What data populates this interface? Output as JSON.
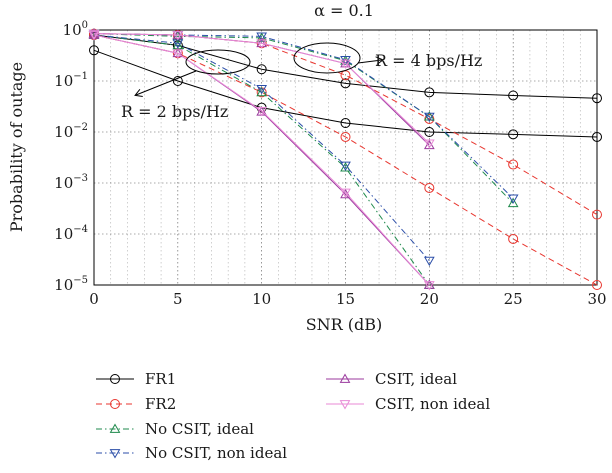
{
  "chart_data": {
    "type": "line",
    "title": "α = 0.1",
    "xlabel": "SNR (dB)",
    "ylabel": "Probability of outage",
    "xlim": [
      0,
      30
    ],
    "ylim": [
      1e-05,
      1
    ],
    "y_scale": "log",
    "grid": true,
    "x_ticks": [
      "0",
      "5",
      "10",
      "15",
      "20",
      "25",
      "30"
    ],
    "y_ticks": [
      {
        "base": "10",
        "exp": "0"
      },
      {
        "base": "10",
        "exp": "−1"
      },
      {
        "base": "10",
        "exp": "−2"
      },
      {
        "base": "10",
        "exp": "−3"
      },
      {
        "base": "10",
        "exp": "−4"
      },
      {
        "base": "10",
        "exp": "−5"
      }
    ],
    "annotations": [
      "R = 4 bps/Hz",
      "R = 2 bps/Hz"
    ],
    "legend_placement": "below",
    "series": [
      {
        "name": "FR1",
        "rate": 2,
        "color": "#000000",
        "dash": "solid",
        "marker": "circle",
        "x": [
          0,
          5,
          10,
          15,
          20,
          25,
          30
        ],
        "y": [
          0.4,
          0.1,
          0.03,
          0.015,
          0.01,
          0.009,
          0.008
        ]
      },
      {
        "name": "FR1",
        "rate": 4,
        "color": "#000000",
        "dash": "solid",
        "marker": "circle",
        "x": [
          0,
          5,
          10,
          15,
          20,
          25,
          30
        ],
        "y": [
          0.8,
          0.5,
          0.17,
          0.09,
          0.06,
          0.052,
          0.046
        ]
      },
      {
        "name": "FR2",
        "rate": 2,
        "color": "#e8362f",
        "dash": "dashed",
        "marker": "circle",
        "x": [
          0,
          5,
          10,
          15,
          20,
          25,
          30
        ],
        "y": [
          0.8,
          0.35,
          0.06,
          0.008,
          0.0008,
          8e-05,
          1e-05
        ]
      },
      {
        "name": "FR2",
        "rate": 4,
        "color": "#e8362f",
        "dash": "dashed",
        "marker": "circle",
        "x": [
          0,
          5,
          10,
          15,
          20,
          25,
          30
        ],
        "y": [
          0.85,
          0.8,
          0.55,
          0.13,
          0.018,
          0.0023,
          0.00024
        ]
      },
      {
        "name": "No CSIT, ideal",
        "rate": 2,
        "color": "#1f8a4c",
        "dash": "dashdot",
        "marker": "triangle-up",
        "x": [
          0,
          5,
          10,
          15,
          20
        ],
        "y": [
          0.8,
          0.5,
          0.06,
          0.002,
          1e-05
        ]
      },
      {
        "name": "No CSIT, ideal",
        "rate": 4,
        "color": "#1f8a4c",
        "dash": "dashdot",
        "marker": "triangle-up",
        "x": [
          0,
          5,
          10,
          15,
          20,
          25
        ],
        "y": [
          0.85,
          0.75,
          0.7,
          0.25,
          0.02,
          0.0004
        ]
      },
      {
        "name": "No CSIT, non ideal",
        "rate": 2,
        "color": "#2b4ea8",
        "dash": "dashdot",
        "marker": "triangle-down",
        "x": [
          0,
          5,
          10,
          15,
          20
        ],
        "y": [
          0.8,
          0.55,
          0.07,
          0.0022,
          3e-05
        ]
      },
      {
        "name": "No CSIT, non ideal",
        "rate": 4,
        "color": "#2b4ea8",
        "dash": "dashdot",
        "marker": "triangle-down",
        "x": [
          0,
          5,
          10,
          15,
          20,
          25
        ],
        "y": [
          0.85,
          0.8,
          0.75,
          0.26,
          0.02,
          0.0005
        ]
      },
      {
        "name": "CSIT, ideal",
        "rate": 2,
        "color": "#9b3a9e",
        "dash": "solid",
        "marker": "triangle-up",
        "x": [
          0,
          5,
          10,
          15,
          20
        ],
        "y": [
          0.8,
          0.35,
          0.025,
          0.0006,
          1e-05
        ]
      },
      {
        "name": "CSIT, ideal",
        "rate": 4,
        "color": "#9b3a9e",
        "dash": "solid",
        "marker": "triangle-up",
        "x": [
          0,
          5,
          10,
          15,
          20
        ],
        "y": [
          0.85,
          0.8,
          0.55,
          0.22,
          0.0055
        ]
      },
      {
        "name": "CSIT, non ideal",
        "rate": 2,
        "color": "#e88ad6",
        "dash": "solid",
        "marker": "triangle-down",
        "x": [
          0,
          5,
          10,
          15,
          20
        ],
        "y": [
          0.8,
          0.35,
          0.026,
          0.00065,
          1e-05
        ]
      },
      {
        "name": "CSIT, non ideal",
        "rate": 4,
        "color": "#e88ad6",
        "dash": "solid",
        "marker": "triangle-down",
        "x": [
          0,
          5,
          10,
          15,
          20
        ],
        "y": [
          0.85,
          0.8,
          0.55,
          0.22,
          0.006
        ]
      }
    ],
    "legend": [
      {
        "name": "FR1",
        "color": "#000000",
        "dash": "solid",
        "marker": "circle"
      },
      {
        "name": "FR2",
        "color": "#e8362f",
        "dash": "dashed",
        "marker": "circle"
      },
      {
        "name": "No CSIT, ideal",
        "color": "#1f8a4c",
        "dash": "dashdot",
        "marker": "triangle-up"
      },
      {
        "name": "No CSIT, non ideal",
        "color": "#2b4ea8",
        "dash": "dashdot",
        "marker": "triangle-down"
      },
      {
        "name": "CSIT, ideal",
        "color": "#9b3a9e",
        "dash": "solid",
        "marker": "triangle-up"
      },
      {
        "name": "CSIT, non ideal",
        "color": "#e88ad6",
        "dash": "solid",
        "marker": "triangle-down"
      }
    ]
  }
}
